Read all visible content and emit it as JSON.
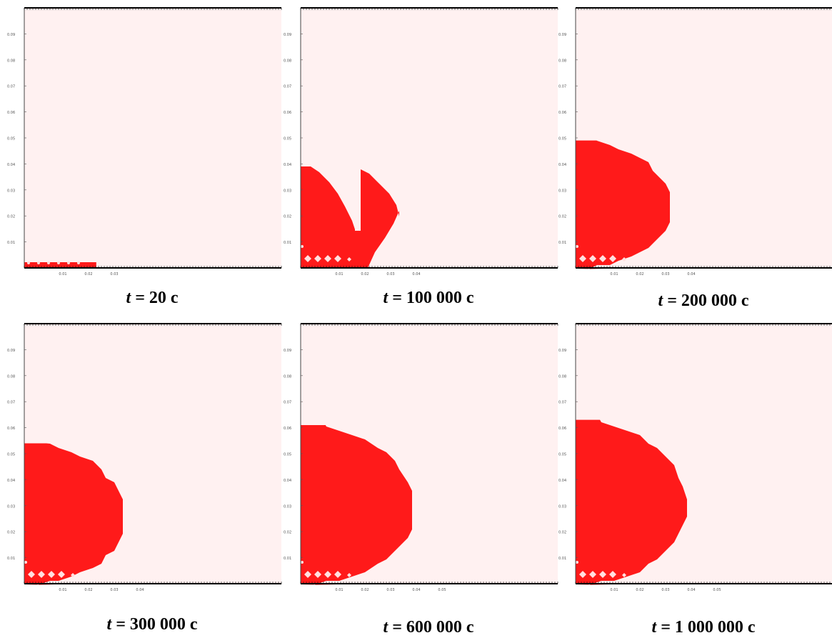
{
  "panels": [
    {
      "t_label": "t =",
      "t_value": "20 c",
      "y_ticks": [
        "0.09",
        "0.08",
        "0.07",
        "0.06",
        "0.05",
        "0.04",
        "0.03",
        "0.02",
        "0.01"
      ],
      "x_ticks": [
        "0.01",
        "0.02",
        "0.03"
      ],
      "region": {
        "type": "strip",
        "extent_x": 0.028,
        "height_y": 0.0025
      }
    },
    {
      "t_label": "t =",
      "t_value": "100 000 c",
      "y_ticks": [
        "0.09",
        "0.08",
        "0.07",
        "0.06",
        "0.05",
        "0.04",
        "0.03",
        "0.02",
        "0.01"
      ],
      "x_ticks": [
        "0.01",
        "0.02",
        "0.03",
        "0.04"
      ],
      "region": {
        "type": "notched",
        "extent_x": 0.037,
        "extent_y": 0.039
      }
    },
    {
      "t_label": "t =",
      "t_value": "200 000 c",
      "y_ticks": [
        "0.09",
        "0.08",
        "0.07",
        "0.06",
        "0.05",
        "0.04",
        "0.03",
        "0.02",
        "0.01"
      ],
      "x_ticks": [
        "0.01",
        "0.02",
        "0.03",
        "0.04"
      ],
      "region": {
        "type": "half-ellipse",
        "extent_x": 0.037,
        "extent_y": 0.049
      }
    },
    {
      "t_label": "t =",
      "t_value": "300 000 c",
      "y_ticks": [
        "0.09",
        "0.08",
        "0.07",
        "0.06",
        "0.05",
        "0.04",
        "0.03",
        "0.02",
        "0.01"
      ],
      "x_ticks": [
        "0.01",
        "0.02",
        "0.03",
        "0.04"
      ],
      "region": {
        "type": "half-ellipse",
        "extent_x": 0.039,
        "extent_y": 0.054
      }
    },
    {
      "t_label": "t =",
      "t_value": "600 000 c",
      "y_ticks": [
        "0.09",
        "0.08",
        "0.07",
        "0.06",
        "0.05",
        "0.04",
        "0.03",
        "0.02",
        "0.01"
      ],
      "x_ticks": [
        "0.01",
        "0.02",
        "0.03",
        "0.04",
        "0.05"
      ],
      "region": {
        "type": "half-ellipse",
        "extent_x": 0.044,
        "extent_y": 0.061
      }
    },
    {
      "t_label": "t =",
      "t_value": "1 000 000 c",
      "y_ticks": [
        "0.09",
        "0.08",
        "0.07",
        "0.06",
        "0.05",
        "0.04",
        "0.03",
        "0.02",
        "0.01"
      ],
      "x_ticks": [
        "0.01",
        "0.02",
        "0.03",
        "0.04",
        "0.05"
      ],
      "region": {
        "type": "half-ellipse",
        "extent_x": 0.043,
        "extent_y": 0.063
      }
    }
  ],
  "colors": {
    "background": "#fff1f1",
    "region": "#ff1a1a",
    "axis": "#000000"
  },
  "axis": {
    "x_max": 0.1,
    "y_max": 0.1
  }
}
